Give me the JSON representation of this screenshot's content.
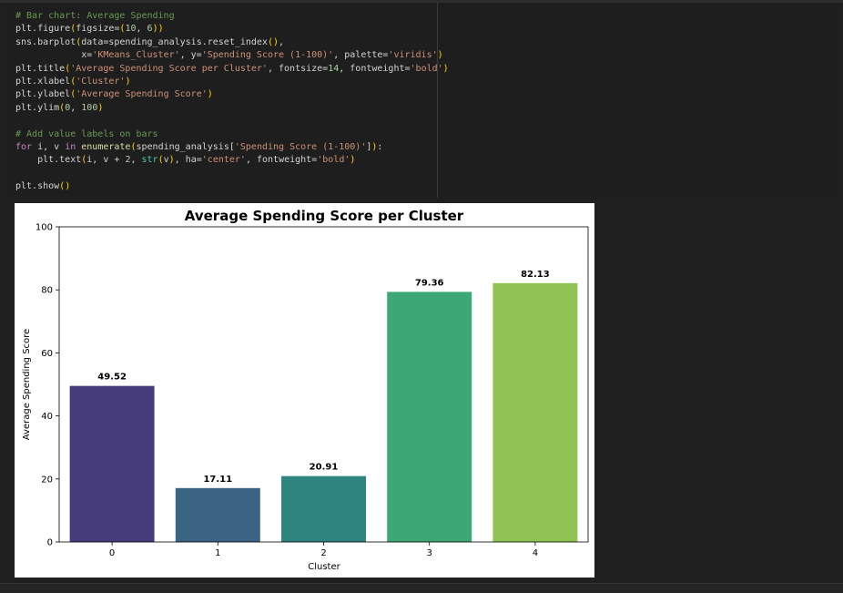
{
  "code_cell": {
    "lines": [
      [
        {
          "t": "# Bar chart: Average Spending",
          "c": "comment"
        }
      ],
      [
        {
          "t": "plt.figure",
          "c": "plain"
        },
        {
          "t": "(",
          "c": "paren"
        },
        {
          "t": "figsize=",
          "c": "plain"
        },
        {
          "t": "(",
          "c": "paren"
        },
        {
          "t": "10",
          "c": "number"
        },
        {
          "t": ", ",
          "c": "plain"
        },
        {
          "t": "6",
          "c": "number"
        },
        {
          "t": "))",
          "c": "paren"
        }
      ],
      [
        {
          "t": "sns.barplot",
          "c": "plain"
        },
        {
          "t": "(",
          "c": "paren"
        },
        {
          "t": "data=spending_analysis.reset_index",
          "c": "plain"
        },
        {
          "t": "()",
          "c": "paren"
        },
        {
          "t": ",",
          "c": "plain"
        }
      ],
      [
        {
          "t": "            x=",
          "c": "plain"
        },
        {
          "t": "'KMeans_Cluster'",
          "c": "string"
        },
        {
          "t": ", y=",
          "c": "plain"
        },
        {
          "t": "'Spending Score (1-100)'",
          "c": "string"
        },
        {
          "t": ", palette=",
          "c": "plain"
        },
        {
          "t": "'viridis'",
          "c": "string"
        },
        {
          "t": ")",
          "c": "paren"
        }
      ],
      [
        {
          "t": "plt.title",
          "c": "plain"
        },
        {
          "t": "(",
          "c": "paren"
        },
        {
          "t": "'Average Spending Score per Cluster'",
          "c": "string"
        },
        {
          "t": ", fontsize=",
          "c": "plain"
        },
        {
          "t": "14",
          "c": "number"
        },
        {
          "t": ", fontweight=",
          "c": "plain"
        },
        {
          "t": "'bold'",
          "c": "string"
        },
        {
          "t": ")",
          "c": "paren"
        }
      ],
      [
        {
          "t": "plt.xlabel",
          "c": "plain"
        },
        {
          "t": "(",
          "c": "paren"
        },
        {
          "t": "'Cluster'",
          "c": "string"
        },
        {
          "t": ")",
          "c": "paren"
        }
      ],
      [
        {
          "t": "plt.ylabel",
          "c": "plain"
        },
        {
          "t": "(",
          "c": "paren"
        },
        {
          "t": "'Average Spending Score'",
          "c": "string"
        },
        {
          "t": ")",
          "c": "paren"
        }
      ],
      [
        {
          "t": "plt.ylim",
          "c": "plain"
        },
        {
          "t": "(",
          "c": "paren"
        },
        {
          "t": "0",
          "c": "number"
        },
        {
          "t": ", ",
          "c": "plain"
        },
        {
          "t": "100",
          "c": "number"
        },
        {
          "t": ")",
          "c": "paren"
        }
      ],
      [
        {
          "t": "",
          "c": "plain"
        }
      ],
      [
        {
          "t": "# Add value labels on bars",
          "c": "comment"
        }
      ],
      [
        {
          "t": "for",
          "c": "keyword"
        },
        {
          "t": " i, v ",
          "c": "plain"
        },
        {
          "t": "in",
          "c": "keyword"
        },
        {
          "t": " ",
          "c": "plain"
        },
        {
          "t": "enumerate",
          "c": "func"
        },
        {
          "t": "(",
          "c": "paren"
        },
        {
          "t": "spending_analysis[",
          "c": "plain"
        },
        {
          "t": "'Spending Score (1-100)'",
          "c": "string"
        },
        {
          "t": "]",
          "c": "plain"
        },
        {
          "t": ")",
          "c": "paren"
        },
        {
          "t": ":",
          "c": "plain"
        }
      ],
      [
        {
          "t": "    plt.text",
          "c": "plain"
        },
        {
          "t": "(",
          "c": "paren"
        },
        {
          "t": "i, v + ",
          "c": "plain"
        },
        {
          "t": "2",
          "c": "number"
        },
        {
          "t": ", ",
          "c": "plain"
        },
        {
          "t": "str",
          "c": "builtin"
        },
        {
          "t": "(",
          "c": "paren"
        },
        {
          "t": "v",
          "c": "plain"
        },
        {
          "t": ")",
          "c": "paren"
        },
        {
          "t": ", ha=",
          "c": "plain"
        },
        {
          "t": "'center'",
          "c": "string"
        },
        {
          "t": ", fontweight=",
          "c": "plain"
        },
        {
          "t": "'bold'",
          "c": "string"
        },
        {
          "t": ")",
          "c": "paren"
        }
      ],
      [
        {
          "t": "",
          "c": "plain"
        }
      ],
      [
        {
          "t": "plt.show",
          "c": "plain"
        },
        {
          "t": "()",
          "c": "paren"
        }
      ]
    ]
  },
  "chart_data": {
    "type": "bar",
    "title": "Average Spending Score per Cluster",
    "xlabel": "Cluster",
    "ylabel": "Average Spending Score",
    "ylim": [
      0,
      100
    ],
    "yticks": [
      0,
      20,
      40,
      60,
      80,
      100
    ],
    "categories": [
      "0",
      "1",
      "2",
      "3",
      "4"
    ],
    "values": [
      49.52,
      17.11,
      20.91,
      79.36,
      82.13
    ],
    "value_labels": [
      "49.52",
      "17.11",
      "20.91",
      "79.36",
      "82.13"
    ],
    "colors": [
      "#473c7b",
      "#3b6384",
      "#2f8480",
      "#3da776",
      "#8ec353"
    ],
    "grid": false,
    "legend": "none"
  }
}
